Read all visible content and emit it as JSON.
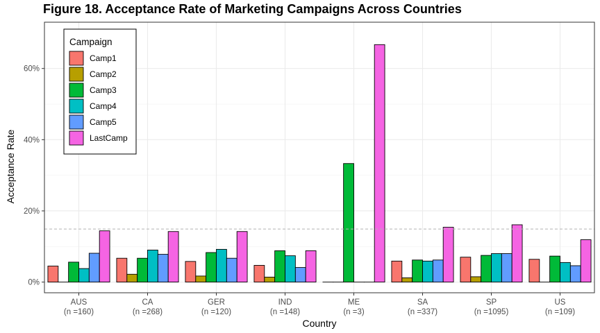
{
  "chart_data": {
    "type": "bar",
    "title": "Figure 18. Acceptance Rate of Marketing Campaigns Across Countries",
    "xlabel": "Country",
    "ylabel": "Acceptance Rate",
    "categories": [
      "AUS",
      "CA",
      "GER",
      "IND",
      "ME",
      "SA",
      "SP",
      "US"
    ],
    "category_counts": [
      "(n =160)",
      "(n =268)",
      "(n =120)",
      "(n =148)",
      "(n =3)",
      "(n =337)",
      "(n =1095)",
      "(n =109)"
    ],
    "ylim": [
      -0.03,
      0.73
    ],
    "yticks": [
      0,
      0.2,
      0.4,
      0.6
    ],
    "ytick_labels": [
      "0%",
      "20%",
      "40%",
      "60%"
    ],
    "reference_line": 0.149,
    "grid": true,
    "legend": {
      "title": "Campaign",
      "position": "top-left"
    },
    "series": [
      {
        "name": "Camp1",
        "color": "#F8766D",
        "values": [
          0.045,
          0.067,
          0.058,
          0.047,
          0.0,
          0.059,
          0.07,
          0.064
        ]
      },
      {
        "name": "Camp2",
        "color": "#B79F00",
        "values": [
          0.0,
          0.022,
          0.017,
          0.014,
          0.0,
          0.012,
          0.015,
          0.0
        ]
      },
      {
        "name": "Camp3",
        "color": "#00BA38",
        "values": [
          0.056,
          0.067,
          0.083,
          0.088,
          0.333,
          0.062,
          0.075,
          0.073
        ]
      },
      {
        "name": "Camp4",
        "color": "#00BFC4",
        "values": [
          0.038,
          0.09,
          0.092,
          0.074,
          0.0,
          0.059,
          0.08,
          0.055
        ]
      },
      {
        "name": "Camp5",
        "color": "#619CFF",
        "values": [
          0.081,
          0.078,
          0.067,
          0.041,
          0.0,
          0.062,
          0.08,
          0.046
        ]
      },
      {
        "name": "LastCamp",
        "color": "#F564E3",
        "values": [
          0.144,
          0.142,
          0.142,
          0.088,
          0.667,
          0.154,
          0.161,
          0.119
        ]
      }
    ]
  }
}
